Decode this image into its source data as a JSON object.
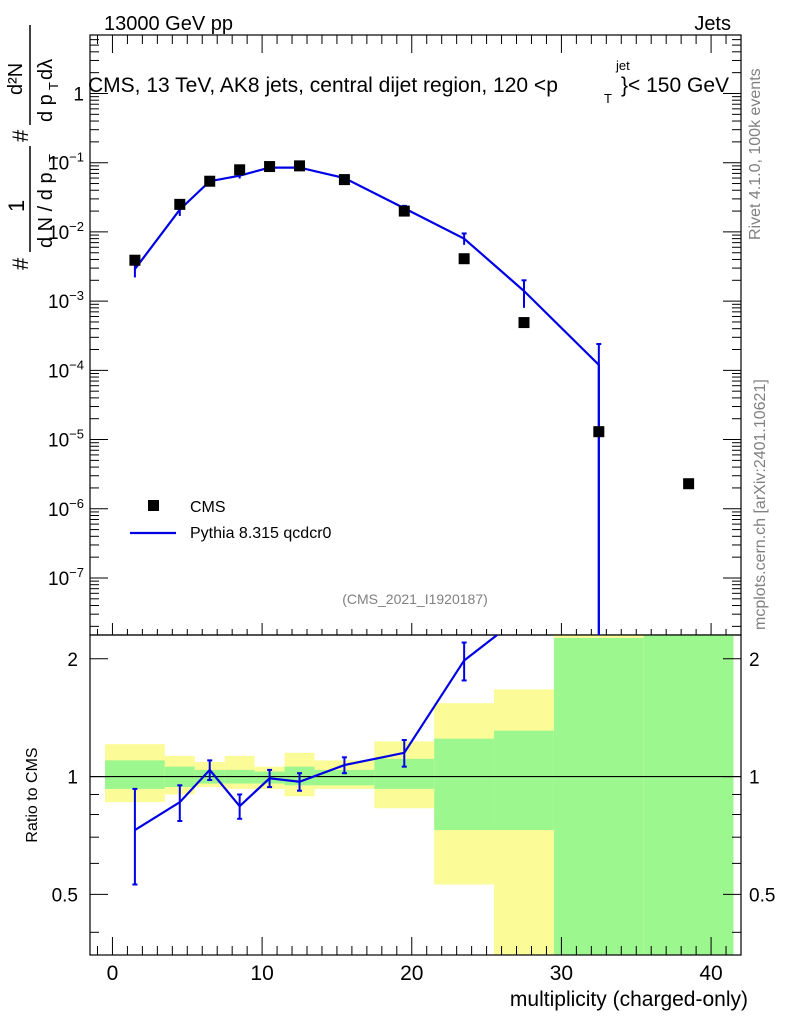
{
  "header": {
    "energy_label": "13000 GeV pp",
    "category_label": "Jets"
  },
  "title": {
    "prefix": "CMS, 13 TeV, AK8 jets, central dijet region, 120 <p",
    "sub": "T",
    "sup": "jet",
    "suffix": "}< 150 GeV"
  },
  "side_labels": {
    "rivet": "Rivet 4.1.0,  100k events",
    "mcplots": "mcplots.cern.ch [arXiv:2401.10621]"
  },
  "analysis_id": "(CMS_2021_I1920187)",
  "y_axis_main": {
    "hash": "#",
    "one": "1",
    "dN": "d N / d p",
    "dN_sub": "T",
    "hash2": "#",
    "d2N": "d²N",
    "dpdl": "d p",
    "dpdl_sub": "T",
    "dl": " dλ"
  },
  "legend": {
    "data_label": "CMS",
    "mc_label": "Pythia 8.315 qcdcr0"
  },
  "colors": {
    "mc": "#0000e6",
    "band_inner": "#9cf78f",
    "band_outer": "#fbfb98",
    "data": "#000000"
  },
  "chart_data": {
    "type": "line",
    "x_label": "multiplicity (charged-only)",
    "x_range": [
      -1.5,
      42
    ],
    "x_ticks": [
      "0",
      "10",
      "20",
      "30",
      "40"
    ],
    "main": {
      "y_scale": "log",
      "y_range": [
        1.5e-08,
        7
      ],
      "y_tick_labels": [
        "1",
        "10^-1",
        "10^-2",
        "10^-3",
        "10^-4",
        "10^-5",
        "10^-6",
        "10^-7"
      ],
      "cms": {
        "x": [
          1.5,
          4.5,
          6.5,
          8.5,
          10.5,
          12.5,
          15.5,
          19.5,
          23.5,
          27.5,
          32.5,
          38.5
        ],
        "y": [
          0.0039,
          0.025,
          0.054,
          0.079,
          0.088,
          0.09,
          0.057,
          0.02,
          0.0041,
          0.00049,
          1.3e-05,
          2.3e-06
        ]
      },
      "pythia": {
        "x": [
          1.5,
          4.5,
          6.5,
          8.5,
          10.5,
          12.5,
          15.5,
          19.5,
          23.5,
          27.5,
          32.5
        ],
        "y": [
          0.0029,
          0.021,
          0.054,
          0.065,
          0.085,
          0.085,
          0.06,
          0.022,
          0.008,
          0.0014,
          0.00012
        ],
        "err_low": [
          0.0007,
          0.004,
          0.004,
          0.006,
          0.004,
          0.003,
          0.003,
          0.0018,
          0.0015,
          0.0006,
          0.00012
        ],
        "err_high": [
          0.0007,
          0.004,
          0.004,
          0.006,
          0.004,
          0.003,
          0.003,
          0.0018,
          0.0015,
          0.0006,
          0.00012
        ]
      }
    },
    "ratio": {
      "y_label": "Ratio to CMS",
      "y_range": [
        0.35,
        2.3
      ],
      "y_tick_labels": [
        "0.5",
        "1",
        "2"
      ],
      "bands": [
        {
          "x0": -0.5,
          "x1": 3.5,
          "in_lo": 0.93,
          "in_hi": 1.1,
          "out_lo": 0.86,
          "out_hi": 1.21
        },
        {
          "x0": 3.5,
          "x1": 5.5,
          "in_lo": 0.94,
          "in_hi": 1.06,
          "out_lo": 0.9,
          "out_hi": 1.13
        },
        {
          "x0": 5.5,
          "x1": 7.5,
          "in_lo": 0.96,
          "in_hi": 1.04,
          "out_lo": 0.94,
          "out_hi": 1.09
        },
        {
          "x0": 7.5,
          "x1": 9.5,
          "in_lo": 0.96,
          "in_hi": 1.04,
          "out_lo": 0.93,
          "out_hi": 1.13
        },
        {
          "x0": 9.5,
          "x1": 11.5,
          "in_lo": 0.96,
          "in_hi": 1.03,
          "out_lo": 0.93,
          "out_hi": 1.06
        },
        {
          "x0": 11.5,
          "x1": 13.5,
          "in_lo": 0.95,
          "in_hi": 1.06,
          "out_lo": 0.89,
          "out_hi": 1.15
        },
        {
          "x0": 13.5,
          "x1": 17.5,
          "in_lo": 0.95,
          "in_hi": 1.04,
          "out_lo": 0.93,
          "out_hi": 1.1
        },
        {
          "x0": 17.5,
          "x1": 21.5,
          "in_lo": 0.93,
          "in_hi": 1.11,
          "out_lo": 0.83,
          "out_hi": 1.23
        },
        {
          "x0": 21.5,
          "x1": 25.5,
          "in_lo": 0.73,
          "in_hi": 1.25,
          "out_lo": 0.53,
          "out_hi": 1.54
        },
        {
          "x0": 25.5,
          "x1": 29.5,
          "in_lo": 0.73,
          "in_hi": 1.31,
          "out_lo": 0.35,
          "out_hi": 1.67
        },
        {
          "x0": 29.5,
          "x1": 35.5,
          "in_lo": 0.35,
          "in_hi": 2.3,
          "out_lo": 0.35,
          "out_hi": 2.3,
          "out_top": 2.26
        },
        {
          "x0": 35.5,
          "x1": 41.5,
          "in_lo": 0.35,
          "in_hi": 2.3,
          "out_lo": 0.35,
          "out_hi": 2.3
        }
      ],
      "pythia_x": [
        1.5,
        4.5,
        6.5,
        8.5,
        10.5,
        12.5,
        15.5,
        19.5,
        23.5,
        27.5
      ],
      "pythia_y": [
        0.73,
        0.86,
        1.04,
        0.84,
        0.99,
        0.97,
        1.07,
        1.15,
        1.98,
        2.6
      ],
      "pythia_err": [
        0.2,
        0.09,
        0.06,
        0.06,
        0.05,
        0.05,
        0.05,
        0.09,
        0.22,
        0.4
      ]
    }
  }
}
